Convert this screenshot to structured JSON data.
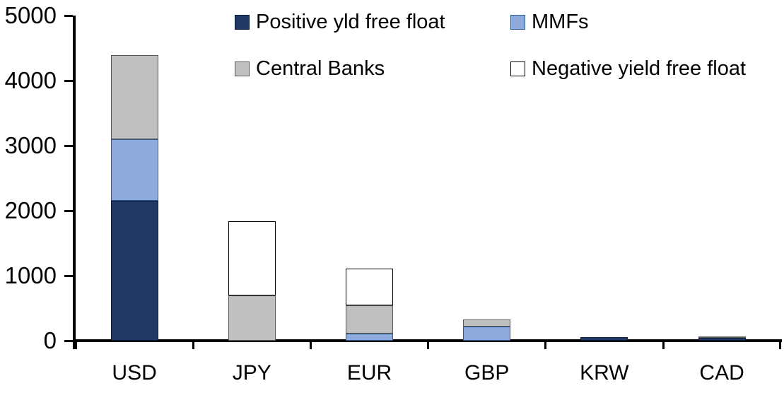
{
  "chart_data": {
    "type": "bar",
    "variant": "stacked-vertical",
    "title": "",
    "background": "#FFFFFF",
    "axis_color": "#000000",
    "text_color": "#000000",
    "grid": "off",
    "categories": [
      "USD",
      "JPY",
      "EUR",
      "GBP",
      "KRW",
      "CAD"
    ],
    "series": [
      {
        "name": "Positive yld free float",
        "color": "#1F3864",
        "border_color": "#0A1A33",
        "values": [
          2150,
          0,
          0,
          0,
          50,
          45
        ]
      },
      {
        "name": "MMFs",
        "color": "#8FAADC",
        "border_color": "#2E5B8F",
        "values": [
          950,
          0,
          110,
          220,
          0,
          0
        ]
      },
      {
        "name": "Central Banks",
        "color": "#C0C0C0",
        "border_color": "#595959",
        "values": [
          1290,
          700,
          430,
          110,
          0,
          20
        ]
      },
      {
        "name": "Negative yield free float",
        "color": "#FFFFFF",
        "border_color": "#000000",
        "values": [
          0,
          1140,
          570,
          0,
          0,
          0
        ]
      }
    ],
    "totals": [
      4390,
      1840,
      1110,
      330,
      50,
      65
    ],
    "y_axis": {
      "min": 0,
      "max": 5000,
      "tick_interval": 1000,
      "tick_labels": [
        "0",
        "1000",
        "2000",
        "3000",
        "4000",
        "5000"
      ]
    },
    "x_axis": {
      "tick_labels": [
        "USD",
        "JPY",
        "EUR",
        "GBP",
        "KRW",
        "CAD"
      ]
    },
    "legend": {
      "position": "top",
      "rows": [
        [
          "Positive yld free float",
          "MMFs"
        ],
        [
          "Central Banks",
          "Negative yield free float"
        ]
      ]
    }
  }
}
